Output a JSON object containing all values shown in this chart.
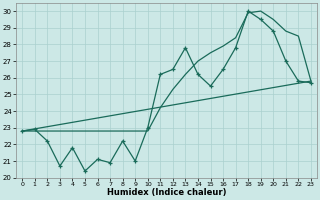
{
  "xlabel": "Humidex (Indice chaleur)",
  "bg_color": "#cce8e6",
  "grid_color": "#aad0ce",
  "line_color": "#1a6b5a",
  "xlim": [
    -0.5,
    23.5
  ],
  "ylim": [
    20,
    30.5
  ],
  "yticks": [
    20,
    21,
    22,
    23,
    24,
    25,
    26,
    27,
    28,
    29,
    30
  ],
  "xticks": [
    0,
    1,
    2,
    3,
    4,
    5,
    6,
    7,
    8,
    9,
    10,
    11,
    12,
    13,
    14,
    15,
    16,
    17,
    18,
    19,
    20,
    21,
    22,
    23
  ],
  "line1_x": [
    0,
    1,
    2,
    3,
    4,
    5,
    6,
    7,
    8,
    9,
    10,
    11,
    12,
    13,
    14,
    15,
    16,
    17,
    18,
    19,
    20,
    21,
    22,
    23
  ],
  "line1_y": [
    22.8,
    22.9,
    22.2,
    20.7,
    21.8,
    20.4,
    21.1,
    20.9,
    22.2,
    21.0,
    23.0,
    26.2,
    26.5,
    27.8,
    26.2,
    25.5,
    26.5,
    27.8,
    30.0,
    29.5,
    28.8,
    27.0,
    25.8,
    25.7
  ],
  "line2_x": [
    0,
    23
  ],
  "line2_y": [
    22.8,
    25.8
  ],
  "line3_x": [
    0,
    1,
    2,
    10,
    11,
    12,
    13,
    14,
    15,
    16,
    17,
    18,
    19,
    20,
    21,
    22,
    23
  ],
  "line3_y": [
    22.8,
    22.8,
    22.8,
    22.8,
    24.2,
    25.3,
    26.2,
    27.0,
    27.5,
    27.9,
    28.4,
    29.9,
    30.0,
    29.5,
    28.8,
    28.5,
    25.8
  ]
}
